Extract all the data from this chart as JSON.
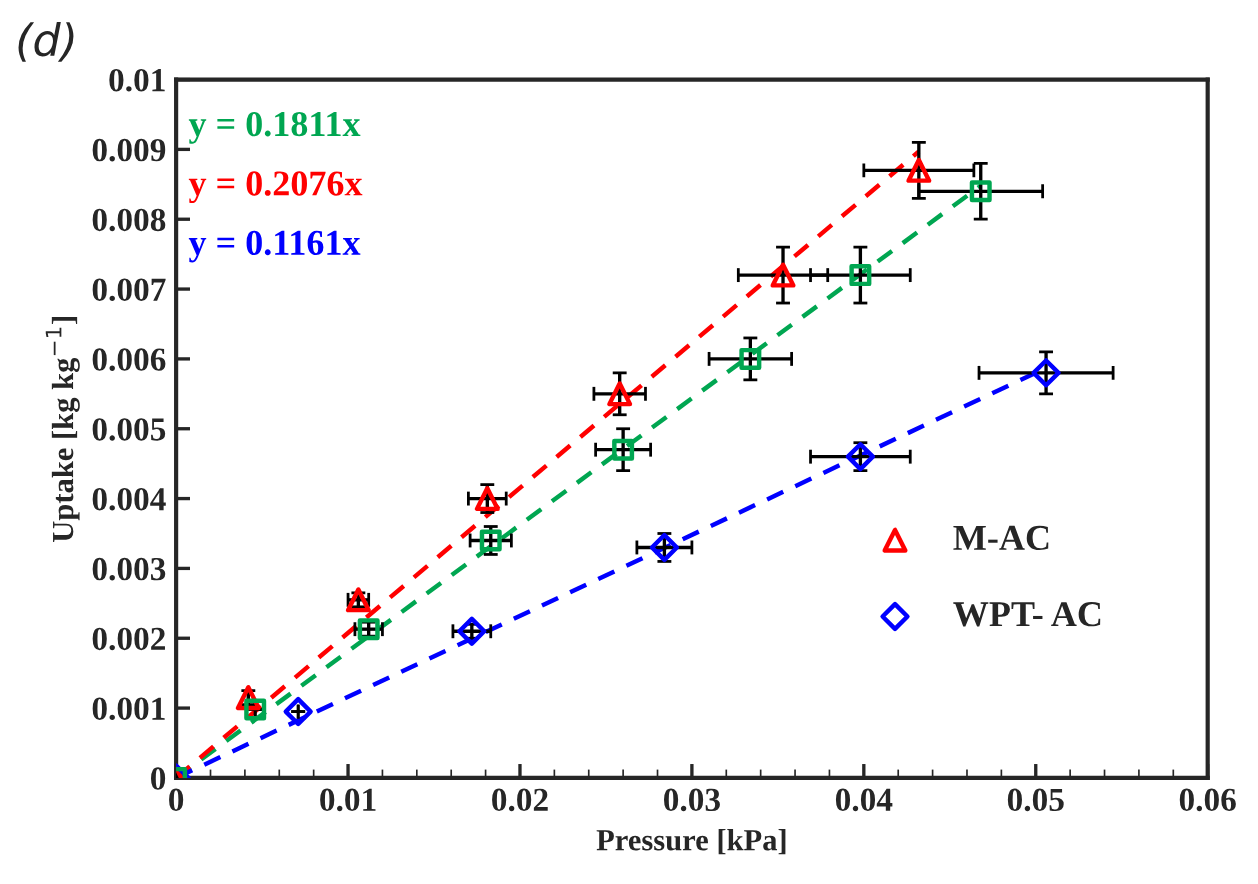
{
  "chart_data": {
    "type": "scatter",
    "title": "(d)",
    "xlabel": "Pressure [kPa]",
    "ylabel": "Uptake [kg kg$^{−1}$]",
    "xlim": [
      0,
      0.06
    ],
    "xticks": [
      0,
      0.01,
      0.02,
      0.03,
      0.04,
      0.05,
      0.06
    ],
    "ylim": [
      0,
      0.01
    ],
    "yticks": [
      0,
      0.001,
      0.002,
      0.003,
      0.004,
      0.005,
      0.006,
      0.007,
      0.008,
      0.009,
      0.01
    ],
    "grid": false,
    "legend": "bottom right",
    "annotations": [
      "y = 0.1811x",
      "y = 0.2076x",
      "y = 0.1161x"
    ],
    "series": [
      {
        "name": "M-AC",
        "marker": "triangle",
        "color": "#ff0000",
        "x": [
          0,
          0.0042,
          0.0106,
          0.0181,
          0.0258,
          0.0353,
          0.0432
        ],
        "values": [
          0,
          0.00115,
          0.00255,
          0.004,
          0.0055,
          0.0072,
          0.0087
        ],
        "errors": [
          null,
          0.0001,
          0.0001,
          0.0002,
          0.0003,
          0.0004,
          0.0004
        ],
        "xerrors": [
          null,
          null,
          0.0006,
          0.0011,
          0.0015,
          0.0026,
          0.0032
        ]
      },
      {
        "name": "WPT- AC",
        "marker": "diamond",
        "color": "#0000ff",
        "x": [
          0,
          0.0071,
          0.0172,
          0.0284,
          0.0398,
          0.0506
        ],
        "values": [
          0,
          0.00095,
          0.0021,
          0.0033,
          0.0046,
          0.0058
        ],
        "errors": [
          null,
          null,
          0.0001,
          0.0002,
          0.0002,
          0.0003
        ],
        "xerrors": [
          null,
          null,
          0.0011,
          0.0016,
          0.0029,
          0.0039
        ]
      },
      {
        "marker": "square",
        "color": "#00a651",
        "x": [
          0,
          0.0046,
          0.0112,
          0.0183,
          0.026,
          0.0334,
          0.0398,
          0.0468
        ],
        "values": [
          0,
          0.00098,
          0.00213,
          0.0034,
          0.0047,
          0.006,
          0.0072,
          0.0084
        ],
        "errors": [
          null,
          null,
          0.0001,
          0.0002,
          0.0003,
          0.0003,
          0.0004,
          0.0004
        ],
        "xerrors": [
          null,
          null,
          0.0008,
          0.0012,
          0.0016,
          0.0024,
          0.0029,
          0.0036
        ]
      },
      {
        "type": "line",
        "line_style": "dashed",
        "color": "#00a651",
        "x": [
          0,
          0.0468
        ],
        "values": [
          0,
          0.00848
        ]
      },
      {
        "type": "line",
        "line_style": "dashed",
        "color": "#ff0000",
        "x": [
          0,
          0.0432
        ],
        "values": [
          0,
          0.00897
        ]
      },
      {
        "type": "line",
        "line_style": "dashed",
        "color": "#0000ff",
        "x": [
          0,
          0.0506
        ],
        "values": [
          0,
          0.00587
        ]
      }
    ]
  }
}
